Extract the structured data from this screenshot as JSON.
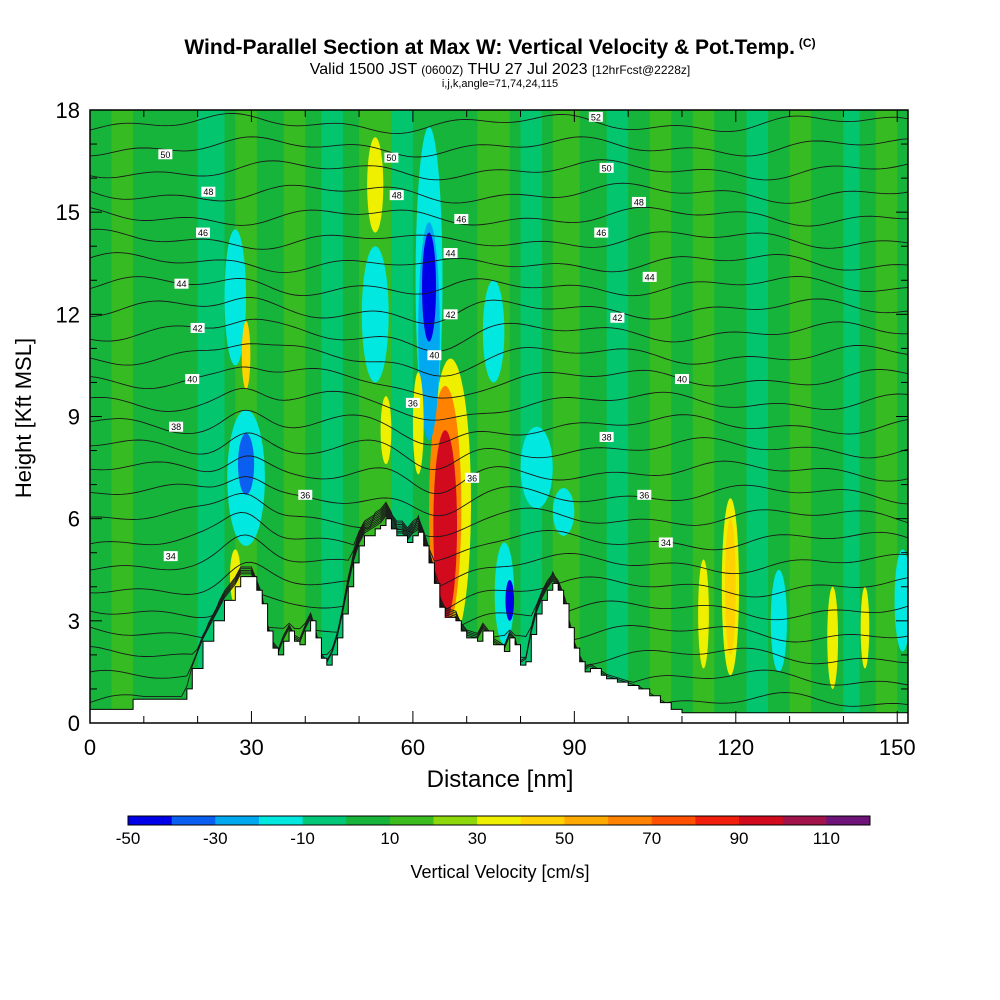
{
  "header": {
    "title": "Wind-Parallel Section at Max W: Vertical Velocity & Pot.Temp.",
    "title_mark": "(C)",
    "valid_prefix": "Valid 1500 JST",
    "valid_utc": "(0600Z)",
    "valid_date": "THU 27 Jul 2023",
    "forecast": "[12hrFcst@2228z]",
    "indices": "i,j,k,angle=71,74,24,115"
  },
  "chart_data": {
    "type": "heatmap",
    "xlabel": "Distance [nm]",
    "ylabel": "Height [Kft MSL]",
    "xlim": [
      0,
      152
    ],
    "ylim": [
      0,
      18
    ],
    "xticks": [
      0,
      30,
      60,
      90,
      120,
      150
    ],
    "yticks": [
      0,
      3,
      6,
      9,
      12,
      15,
      18
    ],
    "colorbar": {
      "label": "Vertical Velocity [cm/s]",
      "levels": [
        -50,
        -40,
        -30,
        -20,
        -10,
        0,
        10,
        20,
        30,
        40,
        50,
        60,
        70,
        80,
        90,
        100,
        110,
        120
      ],
      "tick_labels": [
        "-50",
        "-30",
        "-10",
        "10",
        "30",
        "50",
        "70",
        "90",
        "110"
      ],
      "tick_values": [
        -50,
        -30,
        -10,
        10,
        30,
        50,
        70,
        90,
        110
      ],
      "colors": [
        "#0000e8",
        "#0a5ef0",
        "#00a8f0",
        "#00e8e0",
        "#00c878",
        "#16b43a",
        "#3cbc1e",
        "#8cd80a",
        "#eef000",
        "#ffd200",
        "#ffaa00",
        "#ff8200",
        "#ff5000",
        "#f01e0a",
        "#d20a1e",
        "#a0144b",
        "#6e1478"
      ]
    },
    "terrain": [
      [
        0,
        0.4
      ],
      [
        8,
        0.4
      ],
      [
        8,
        0.7
      ],
      [
        17,
        0.7
      ],
      [
        18,
        1.0
      ],
      [
        19,
        1.6
      ],
      [
        21,
        2.4
      ],
      [
        23,
        3.0
      ],
      [
        25,
        3.6
      ],
      [
        27,
        4.0
      ],
      [
        28,
        4.3
      ],
      [
        30,
        4.3
      ],
      [
        31,
        3.9
      ],
      [
        32,
        3.5
      ],
      [
        33,
        2.7
      ],
      [
        34,
        2.2
      ],
      [
        35,
        2.0
      ],
      [
        36,
        2.4
      ],
      [
        37,
        2.7
      ],
      [
        38,
        2.4
      ],
      [
        39,
        2.3
      ],
      [
        40,
        2.7
      ],
      [
        41,
        3.0
      ],
      [
        42,
        2.5
      ],
      [
        43,
        1.9
      ],
      [
        44,
        1.7
      ],
      [
        45,
        2.0
      ],
      [
        46,
        2.5
      ],
      [
        47,
        3.2
      ],
      [
        48,
        4.0
      ],
      [
        49,
        4.7
      ],
      [
        50,
        5.2
      ],
      [
        51,
        5.5
      ],
      [
        53,
        5.7
      ],
      [
        54,
        5.8
      ],
      [
        55,
        6.0
      ],
      [
        56,
        5.7
      ],
      [
        57,
        5.5
      ],
      [
        58,
        5.5
      ],
      [
        59,
        5.3
      ],
      [
        60,
        5.5
      ],
      [
        61,
        5.6
      ],
      [
        62,
        5.2
      ],
      [
        63,
        4.7
      ],
      [
        64,
        4.1
      ],
      [
        65,
        3.4
      ],
      [
        66,
        3.1
      ],
      [
        68,
        3.0
      ],
      [
        69,
        2.7
      ],
      [
        70,
        2.5
      ],
      [
        72,
        2.4
      ],
      [
        73,
        2.7
      ],
      [
        75,
        2.3
      ],
      [
        77,
        2.1
      ],
      [
        78,
        2.5
      ],
      [
        79,
        2.3
      ],
      [
        80,
        1.7
      ],
      [
        81,
        1.8
      ],
      [
        82,
        2.6
      ],
      [
        83,
        3.2
      ],
      [
        84,
        3.6
      ],
      [
        85,
        3.9
      ],
      [
        86,
        4.1
      ],
      [
        87,
        3.9
      ],
      [
        88,
        3.5
      ],
      [
        89,
        2.8
      ],
      [
        90,
        2.2
      ],
      [
        91,
        1.8
      ],
      [
        92,
        1.5
      ],
      [
        93,
        1.6
      ],
      [
        95,
        1.4
      ],
      [
        96,
        1.3
      ],
      [
        98,
        1.2
      ],
      [
        100,
        1.1
      ],
      [
        102,
        1.0
      ],
      [
        104,
        0.8
      ],
      [
        106,
        0.6
      ],
      [
        108,
        0.4
      ],
      [
        110,
        0.3
      ],
      [
        152,
        0.3
      ]
    ],
    "theta_levels": [
      {
        "value": 34,
        "label": "34",
        "label_x": 15,
        "label_y": 4.9
      },
      {
        "value": 36,
        "label": "36",
        "label_x": 40,
        "label_y": 6.7
      },
      {
        "value": 36,
        "label": "36",
        "label_x": 103,
        "label_y": 6.7
      },
      {
        "value": 34,
        "label": "34",
        "label_x": 107,
        "label_y": 5.3
      },
      {
        "value": 38,
        "label": "38",
        "label_x": 16,
        "label_y": 8.7
      },
      {
        "value": 38,
        "label": "38",
        "label_x": 96,
        "label_y": 8.4
      },
      {
        "value": 36,
        "label": "36",
        "label_x": 60,
        "label_y": 9.4
      },
      {
        "value": 36,
        "label": "36",
        "label_x": 71,
        "label_y": 7.2
      },
      {
        "value": 40,
        "label": "40",
        "label_x": 19,
        "label_y": 10.1
      },
      {
        "value": 40,
        "label": "40",
        "label_x": 64,
        "label_y": 10.8
      },
      {
        "value": 40,
        "label": "40",
        "label_x": 110,
        "label_y": 10.1
      },
      {
        "value": 42,
        "label": "42",
        "label_x": 20,
        "label_y": 11.6
      },
      {
        "value": 42,
        "label": "42",
        "label_x": 67,
        "label_y": 12.0
      },
      {
        "value": 42,
        "label": "42",
        "label_x": 98,
        "label_y": 11.9
      },
      {
        "value": 44,
        "label": "44",
        "label_x": 17,
        "label_y": 12.9
      },
      {
        "value": 44,
        "label": "44",
        "label_x": 67,
        "label_y": 13.8
      },
      {
        "value": 44,
        "label": "44",
        "label_x": 104,
        "label_y": 13.1
      },
      {
        "value": 46,
        "label": "46",
        "label_x": 21,
        "label_y": 14.4
      },
      {
        "value": 46,
        "label": "46",
        "label_x": 69,
        "label_y": 14.8
      },
      {
        "value": 46,
        "label": "46",
        "label_x": 95,
        "label_y": 14.4
      },
      {
        "value": 48,
        "label": "48",
        "label_x": 22,
        "label_y": 15.6
      },
      {
        "value": 48,
        "label": "48",
        "label_x": 57,
        "label_y": 15.5
      },
      {
        "value": 48,
        "label": "48",
        "label_x": 102,
        "label_y": 15.3
      },
      {
        "value": 50,
        "label": "50",
        "label_x": 14,
        "label_y": 16.7
      },
      {
        "value": 50,
        "label": "50",
        "label_x": 56,
        "label_y": 16.6
      },
      {
        "value": 50,
        "label": "50",
        "label_x": 96,
        "label_y": 16.3
      },
      {
        "value": 52,
        "label": "52",
        "label_x": 94,
        "label_y": 17.8
      }
    ],
    "w_features": [
      {
        "value": 90,
        "x": 66,
        "y": 5.8,
        "rx": 2.2,
        "ry": 2.8
      },
      {
        "value": 60,
        "x": 66,
        "y": 6.3,
        "rx": 3.0,
        "ry": 3.6
      },
      {
        "value": 35,
        "x": 67,
        "y": 6.5,
        "rx": 3.8,
        "ry": 4.2
      },
      {
        "value": -45,
        "x": 63,
        "y": 12.8,
        "rx": 1.3,
        "ry": 1.6
      },
      {
        "value": -30,
        "x": 63,
        "y": 11.5,
        "rx": 2.0,
        "ry": 3.2
      },
      {
        "value": -15,
        "x": 63,
        "y": 13.0,
        "rx": 2.5,
        "ry": 4.5
      },
      {
        "value": -35,
        "x": 29,
        "y": 7.6,
        "rx": 1.5,
        "ry": 0.9
      },
      {
        "value": -15,
        "x": 29,
        "y": 7.2,
        "rx": 3.5,
        "ry": 2.0
      },
      {
        "value": -15,
        "x": 27,
        "y": 12.5,
        "rx": 2.0,
        "ry": 2.0
      },
      {
        "value": -45,
        "x": 78,
        "y": 3.6,
        "rx": 0.8,
        "ry": 0.6
      },
      {
        "value": -15,
        "x": 77,
        "y": 3.8,
        "rx": 1.8,
        "ry": 1.5
      },
      {
        "value": -15,
        "x": 75,
        "y": 11.5,
        "rx": 2.0,
        "ry": 1.5
      },
      {
        "value": -15,
        "x": 83,
        "y": 7.5,
        "rx": 3.0,
        "ry": 1.2
      },
      {
        "value": -15,
        "x": 88,
        "y": 6.2,
        "rx": 2.0,
        "ry": 0.7
      },
      {
        "value": -15,
        "x": 128,
        "y": 3.0,
        "rx": 1.5,
        "ry": 1.5
      },
      {
        "value": -15,
        "x": 151,
        "y": 3.6,
        "rx": 1.5,
        "ry": 1.5
      },
      {
        "value": -15,
        "x": 53,
        "y": 12.0,
        "rx": 2.5,
        "ry": 2.0
      },
      {
        "value": 40,
        "x": 29,
        "y": 10.8,
        "rx": 0.8,
        "ry": 1.0
      },
      {
        "value": 30,
        "x": 53,
        "y": 15.8,
        "rx": 1.5,
        "ry": 1.4
      },
      {
        "value": 30,
        "x": 61,
        "y": 8.8,
        "rx": 1.0,
        "ry": 1.5
      },
      {
        "value": 30,
        "x": 55,
        "y": 8.6,
        "rx": 1.0,
        "ry": 1.0
      },
      {
        "value": 30,
        "x": 27,
        "y": 4.3,
        "rx": 1.0,
        "ry": 0.8
      },
      {
        "value": 40,
        "x": 119,
        "y": 4.0,
        "rx": 1.0,
        "ry": 2.0
      },
      {
        "value": 30,
        "x": 119,
        "y": 4.0,
        "rx": 1.6,
        "ry": 2.6
      },
      {
        "value": 30,
        "x": 114,
        "y": 3.2,
        "rx": 1.0,
        "ry": 1.6
      },
      {
        "value": 30,
        "x": 138,
        "y": 2.5,
        "rx": 1.0,
        "ry": 1.5
      },
      {
        "value": 30,
        "x": 144,
        "y": 2.8,
        "rx": 0.8,
        "ry": 1.2
      }
    ]
  }
}
